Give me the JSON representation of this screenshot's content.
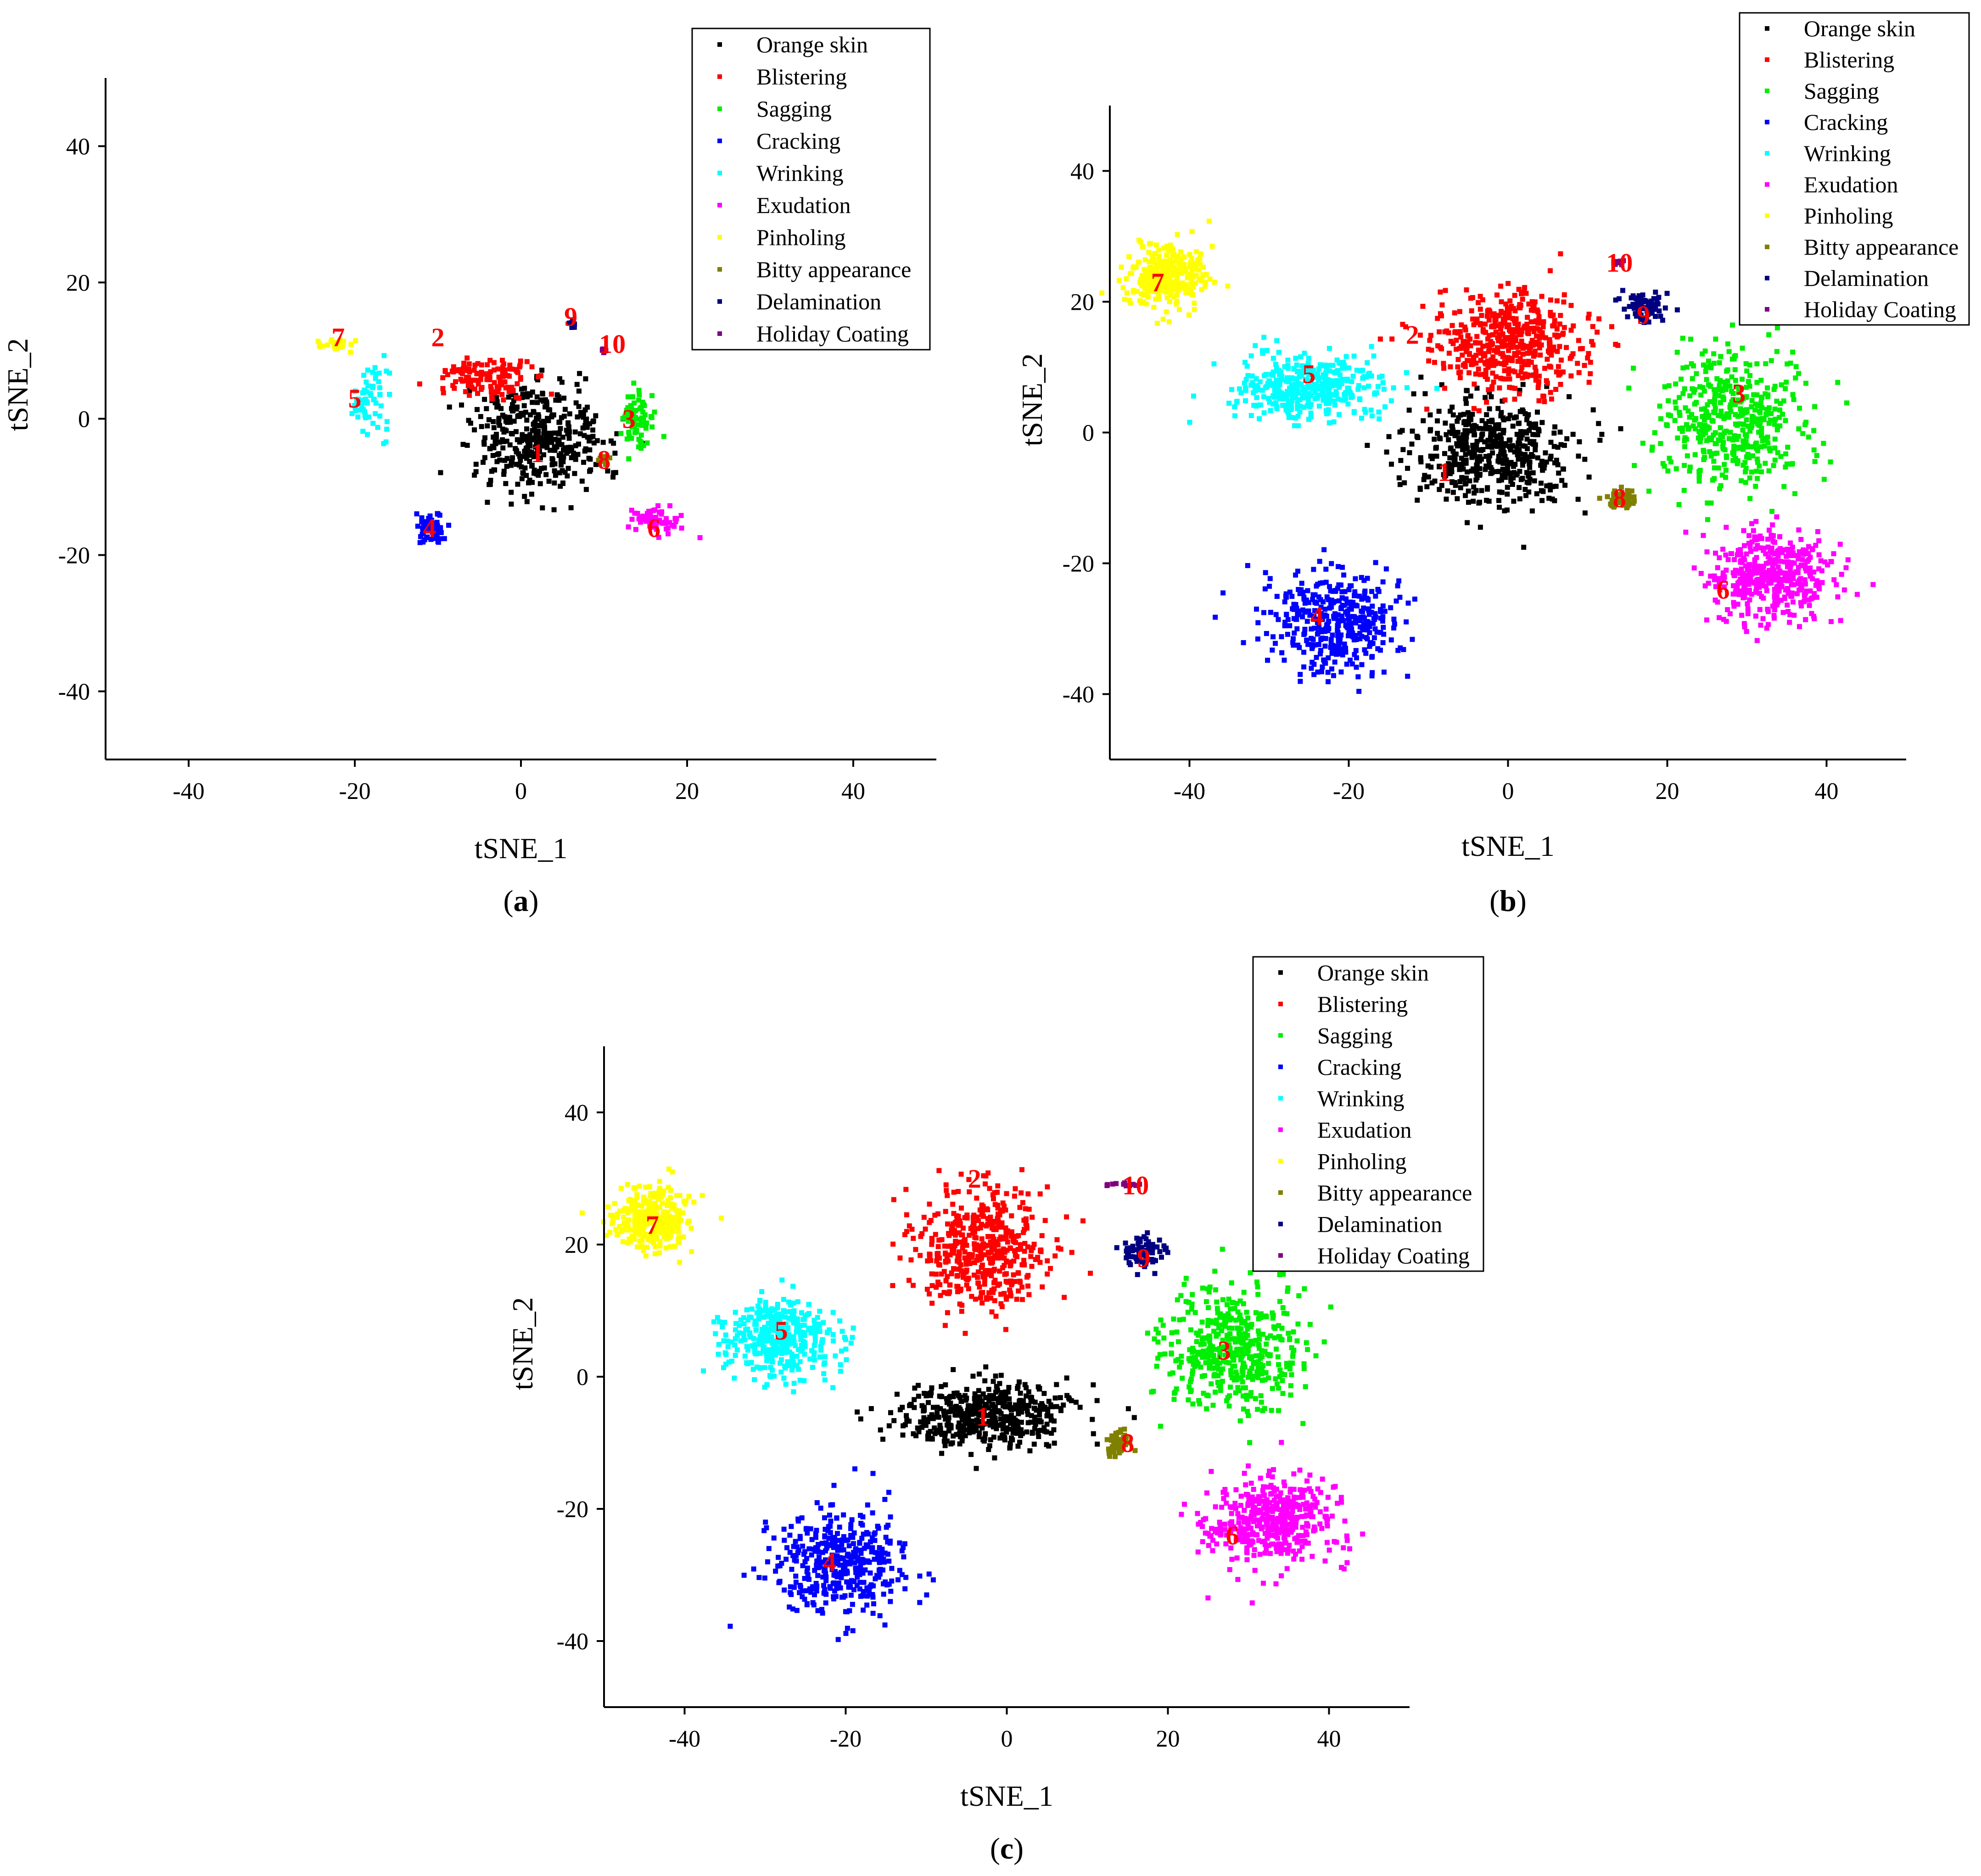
{
  "figure": {
    "colors": {
      "Orange skin": "#000000",
      "Blistering": "#ff0000",
      "Sagging": "#00ee00",
      "Cracking": "#0000ff",
      "Wrinking": "#00ffff",
      "Exudation": "#ff00ff",
      "Pinholing": "#ffff00",
      "Bitty appearance": "#808000",
      "Delamination": "#000080",
      "Holiday Coating": "#800080"
    }
  },
  "chart_data": [
    {
      "id": "a",
      "type": "scatter",
      "caption_letter": "a",
      "xlabel": "tSNE_1",
      "ylabel": "tSNE_2",
      "xlim": [
        -50,
        50
      ],
      "ylim": [
        -50,
        50
      ],
      "xticks": [
        "-40",
        "-20",
        "0",
        "20",
        "40"
      ],
      "yticks": [
        "40",
        "20",
        "0",
        "-20",
        "-40"
      ],
      "legend": [
        "Orange skin",
        "Blistering",
        "Sagging",
        "Cracking",
        "Wrinking",
        "Exudation",
        "Pinholing",
        "Bitty appearance",
        "Delamination",
        "Holiday Coating"
      ],
      "legend_position": "top-right",
      "series": [
        {
          "name": "Orange skin",
          "label": "1",
          "center": [
            2,
            -3
          ],
          "spread": [
            8,
            8
          ],
          "n": 420,
          "label_at": [
            2,
            -5
          ]
        },
        {
          "name": "Blistering",
          "label": "2",
          "center": [
            -4,
            6
          ],
          "spread": [
            6,
            3
          ],
          "n": 120,
          "label_at": [
            -10,
            12
          ]
        },
        {
          "name": "Sagging",
          "label": "3",
          "center": [
            14,
            0
          ],
          "spread": [
            1.8,
            4
          ],
          "n": 80,
          "label_at": [
            13,
            0
          ]
        },
        {
          "name": "Cracking",
          "label": "4",
          "center": [
            -11,
            -16
          ],
          "spread": [
            2,
            2.5
          ],
          "n": 60,
          "label_at": [
            -11,
            -16
          ]
        },
        {
          "name": "Wrinking",
          "label": "5",
          "center": [
            -18,
            3
          ],
          "spread": [
            2.5,
            5
          ],
          "n": 60,
          "label_at": [
            -20,
            3
          ]
        },
        {
          "name": "Exudation",
          "label": "6",
          "center": [
            16,
            -15
          ],
          "spread": [
            3,
            2
          ],
          "n": 60,
          "label_at": [
            16,
            -16
          ]
        },
        {
          "name": "Pinholing",
          "label": "7",
          "center": [
            -22,
            11
          ],
          "spread": [
            2,
            1
          ],
          "n": 25,
          "label_at": [
            -22,
            12
          ]
        },
        {
          "name": "Bitty appearance",
          "label": "8",
          "center": [
            10,
            -6
          ],
          "spread": [
            0.8,
            0.6
          ],
          "n": 15,
          "label_at": [
            10,
            -6
          ]
        },
        {
          "name": "Delamination",
          "label": "9",
          "center": [
            6,
            14
          ],
          "spread": [
            0.6,
            0.6
          ],
          "n": 8,
          "label_at": [
            6,
            15
          ]
        },
        {
          "name": "Holiday Coating",
          "label": "10",
          "center": [
            10,
            10
          ],
          "spread": [
            0.6,
            0.4
          ],
          "n": 8,
          "label_at": [
            11,
            11
          ]
        }
      ]
    },
    {
      "id": "b",
      "type": "scatter",
      "caption_letter": "b",
      "xlabel": "tSNE_1",
      "ylabel": "tSNE_2",
      "xlim": [
        -50,
        50
      ],
      "ylim": [
        -50,
        50
      ],
      "xticks": [
        "-40",
        "-20",
        "0",
        "20",
        "40"
      ],
      "yticks": [
        "40",
        "20",
        "0",
        "-20",
        "-40"
      ],
      "legend": [
        "Orange skin",
        "Blistering",
        "Sagging",
        "Cracking",
        "Wrinking",
        "Exudation",
        "Pinholing",
        "Bitty appearance",
        "Delamination",
        "Holiday Coating"
      ],
      "legend_position": "top-right",
      "series": [
        {
          "name": "Orange skin",
          "label": "1",
          "center": [
            -2,
            -3
          ],
          "spread": [
            10,
            8
          ],
          "n": 500,
          "label_at": [
            -8,
            -6
          ]
        },
        {
          "name": "Blistering",
          "label": "2",
          "center": [
            0,
            14
          ],
          "spread": [
            10,
            8
          ],
          "n": 480,
          "label_at": [
            -12,
            15
          ]
        },
        {
          "name": "Sagging",
          "label": "3",
          "center": [
            28,
            2
          ],
          "spread": [
            9,
            10
          ],
          "n": 450,
          "label_at": [
            29,
            6
          ]
        },
        {
          "name": "Cracking",
          "label": "4",
          "center": [
            -22,
            -29
          ],
          "spread": [
            8,
            8
          ],
          "n": 400,
          "label_at": [
            -24,
            -28
          ]
        },
        {
          "name": "Wrinking",
          "label": "5",
          "center": [
            -25,
            7
          ],
          "spread": [
            9,
            5
          ],
          "n": 380,
          "label_at": [
            -25,
            9
          ]
        },
        {
          "name": "Exudation",
          "label": "6",
          "center": [
            33,
            -22
          ],
          "spread": [
            8,
            7
          ],
          "n": 420,
          "label_at": [
            27,
            -24
          ]
        },
        {
          "name": "Pinholing",
          "label": "7",
          "center": [
            -43,
            24
          ],
          "spread": [
            5,
            5
          ],
          "n": 300,
          "label_at": [
            -44,
            23
          ]
        },
        {
          "name": "Bitty appearance",
          "label": "8",
          "center": [
            14,
            -10
          ],
          "spread": [
            1.6,
            1.6
          ],
          "n": 60,
          "label_at": [
            14,
            -10
          ]
        },
        {
          "name": "Delamination",
          "label": "9",
          "center": [
            17,
            19
          ],
          "spread": [
            2.5,
            2.5
          ],
          "n": 80,
          "label_at": [
            17,
            18
          ]
        },
        {
          "name": "Holiday Coating",
          "label": "10",
          "center": [
            14,
            26
          ],
          "spread": [
            1,
            0.5
          ],
          "n": 12,
          "label_at": [
            14,
            26
          ]
        }
      ]
    },
    {
      "id": "c",
      "type": "scatter",
      "caption_letter": "c",
      "xlabel": "tSNE_1",
      "ylabel": "tSNE_2",
      "xlim": [
        -50,
        50
      ],
      "ylim": [
        -50,
        50
      ],
      "xticks": [
        "-40",
        "-20",
        "0",
        "20",
        "40"
      ],
      "yticks": [
        "40",
        "20",
        "0",
        "-20",
        "-40"
      ],
      "legend": [
        "Orange skin",
        "Blistering",
        "Sagging",
        "Cracking",
        "Wrinking",
        "Exudation",
        "Pinholing",
        "Bitty appearance",
        "Delamination",
        "Holiday Coating"
      ],
      "legend_position": "top-right",
      "series": [
        {
          "name": "Orange skin",
          "label": "1",
          "center": [
            -3,
            -6
          ],
          "spread": [
            11,
            5
          ],
          "n": 480,
          "label_at": [
            -3,
            -6
          ]
        },
        {
          "name": "Blistering",
          "label": "2",
          "center": [
            -3,
            19
          ],
          "spread": [
            8,
            9
          ],
          "n": 480,
          "label_at": [
            -4,
            30
          ]
        },
        {
          "name": "Sagging",
          "label": "3",
          "center": [
            28,
            4
          ],
          "spread": [
            9,
            10
          ],
          "n": 460,
          "label_at": [
            27,
            4
          ]
        },
        {
          "name": "Cracking",
          "label": "4",
          "center": [
            -21,
            -28
          ],
          "spread": [
            8,
            8
          ],
          "n": 400,
          "label_at": [
            -22,
            -28
          ]
        },
        {
          "name": "Wrinking",
          "label": "5",
          "center": [
            -28,
            6
          ],
          "spread": [
            7,
            6
          ],
          "n": 380,
          "label_at": [
            -28,
            7
          ]
        },
        {
          "name": "Exudation",
          "label": "6",
          "center": [
            33,
            -22
          ],
          "spread": [
            8,
            7
          ],
          "n": 420,
          "label_at": [
            28,
            -24
          ]
        },
        {
          "name": "Pinholing",
          "label": "7",
          "center": [
            -44,
            24
          ],
          "spread": [
            5,
            5
          ],
          "n": 300,
          "label_at": [
            -44,
            23
          ]
        },
        {
          "name": "Bitty appearance",
          "label": "8",
          "center": [
            14,
            -10
          ],
          "spread": [
            1.6,
            1.6
          ],
          "n": 60,
          "label_at": [
            15,
            -10
          ]
        },
        {
          "name": "Delamination",
          "label": "9",
          "center": [
            17,
            19
          ],
          "spread": [
            2.5,
            2.5
          ],
          "n": 80,
          "label_at": [
            17,
            18
          ]
        },
        {
          "name": "Holiday Coating",
          "label": "10",
          "center": [
            15,
            29
          ],
          "spread": [
            2.5,
            0.5
          ],
          "n": 14,
          "label_at": [
            16,
            29
          ]
        }
      ]
    }
  ]
}
